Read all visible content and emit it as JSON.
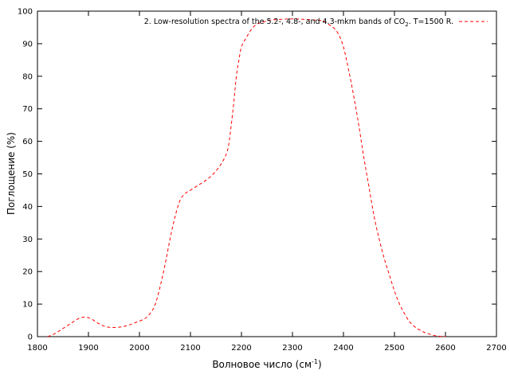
{
  "chart_data": {
    "type": "line",
    "xlabel": "Волновое число (см",
    "xlabel_sup": "-1",
    "xlabel_close": ")",
    "ylabel": "Поглощение (%)",
    "xlim": [
      1800,
      2700
    ],
    "ylim": [
      0,
      100
    ],
    "xticks": [
      1800,
      1900,
      2000,
      2100,
      2200,
      2300,
      2400,
      2500,
      2600,
      2700
    ],
    "yticks": [
      0,
      10,
      20,
      30,
      40,
      50,
      60,
      70,
      80,
      90,
      100
    ],
    "grid": false,
    "legend_position": "top-right",
    "series": [
      {
        "name_main": "2. Low-resolution spectra of the 5.2-, 4.8-, and 4.3-mkm bands of CO",
        "name_sub": "2",
        "name_tail": ". T=1500 R.",
        "color": "#ff0000",
        "style": "dashed",
        "x": [
          1820,
          1835,
          1850,
          1865,
          1880,
          1893,
          1905,
          1920,
          1935,
          1950,
          1965,
          1980,
          1995,
          2010,
          2020,
          2030,
          2040,
          2050,
          2060,
          2070,
          2080,
          2090,
          2100,
          2115,
          2130,
          2145,
          2160,
          2170,
          2175,
          2180,
          2185,
          2190,
          2195,
          2200,
          2210,
          2220,
          2230,
          2240,
          2250,
          2260,
          2280,
          2300,
          2320,
          2340,
          2360,
          2370,
          2380,
          2390,
          2400,
          2410,
          2420,
          2430,
          2440,
          2450,
          2460,
          2470,
          2480,
          2490,
          2500,
          2510,
          2520,
          2530,
          2540,
          2550,
          2560,
          2570,
          2580,
          2590,
          2600
        ],
        "values": [
          0,
          1,
          2.5,
          4,
          5.5,
          6,
          5.5,
          4,
          3,
          2.8,
          3,
          3.6,
          4.5,
          5.5,
          7,
          9.5,
          15,
          22,
          30,
          37,
          42,
          44,
          45,
          46.5,
          48,
          50,
          53,
          56,
          59,
          65,
          72,
          80,
          85,
          89,
          92,
          94.5,
          96,
          96.5,
          97,
          97.3,
          97.5,
          97.6,
          97.5,
          97.3,
          97,
          96,
          95,
          93,
          89,
          82,
          74,
          65,
          55,
          46,
          37,
          30,
          24,
          19,
          14,
          10,
          7,
          4.5,
          3,
          2,
          1.2,
          0.7,
          0.3,
          0.1,
          0
        ]
      }
    ]
  }
}
